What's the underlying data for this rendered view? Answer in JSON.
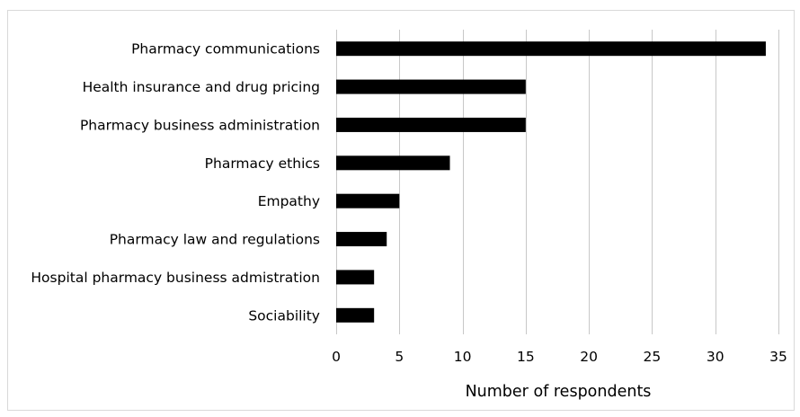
{
  "chart_data": {
    "type": "bar",
    "orientation": "horizontal",
    "categories": [
      "Pharmacy communications",
      "Health insurance and drug pricing",
      "Pharmacy business administration",
      "Pharmacy ethics",
      "Empathy",
      "Pharmacy law and regulations",
      "Hospital pharmacy business admistration",
      "Sociability"
    ],
    "values": [
      34,
      15,
      15,
      9,
      5,
      4,
      3,
      3
    ],
    "xlabel": "Number of respondents",
    "ylabel": "",
    "xlim": [
      0,
      35
    ],
    "xticks": [
      "0",
      "5",
      "10",
      "15",
      "20",
      "25",
      "30",
      "35"
    ],
    "grid": "vertical",
    "legend": "none",
    "bar_color": "#000000",
    "grid_color": "#c8c8c8"
  }
}
